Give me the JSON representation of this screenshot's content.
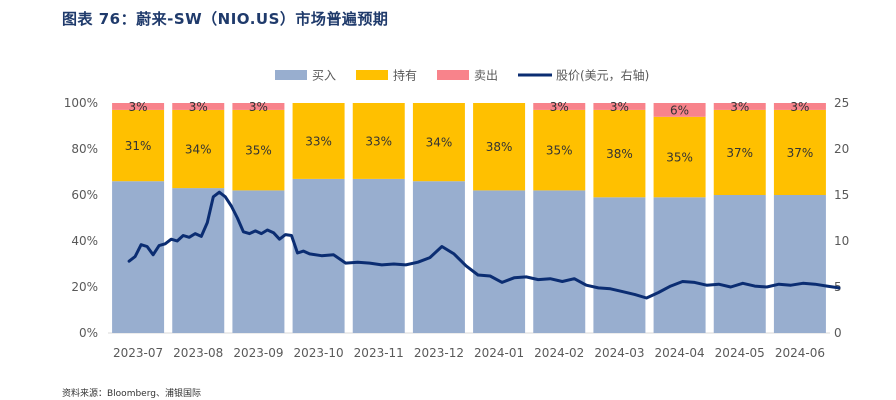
{
  "figure": {
    "title": "图表 76：蔚来-SW（NIO.US）市场普遍预期",
    "source": "资料来源：Bloomberg、浦银国际"
  },
  "colors": {
    "buy": "#98aecf",
    "hold": "#ffc000",
    "sell": "#f8838b",
    "price": "#0b2d72",
    "title": "#1f3a6b"
  },
  "chart_data": {
    "type": "bar",
    "stacked": true,
    "categories": [
      "2023-07",
      "2023-08",
      "2023-09",
      "2023-10",
      "2023-11",
      "2023-12",
      "2024-01",
      "2024-02",
      "2024-03",
      "2024-04",
      "2024-05",
      "2024-06"
    ],
    "series": [
      {
        "name": "买入",
        "key": "buy",
        "values": [
          66,
          63,
          62,
          67,
          67,
          66,
          62,
          62,
          59,
          59,
          60,
          60
        ],
        "labels": [
          "",
          "",
          "",
          "",
          "",
          "",
          "",
          "",
          "",
          "",
          "",
          ""
        ]
      },
      {
        "name": "持有",
        "key": "hold",
        "values": [
          31,
          34,
          35,
          33,
          33,
          34,
          38,
          35,
          38,
          35,
          37,
          37
        ],
        "labels": [
          "31%",
          "34%",
          "35%",
          "33%",
          "33%",
          "34%",
          "38%",
          "35%",
          "38%",
          "35%",
          "37%",
          "37%"
        ]
      },
      {
        "name": "卖出",
        "key": "sell",
        "values": [
          3,
          3,
          3,
          0,
          0,
          0,
          0,
          3,
          3,
          6,
          3,
          3
        ],
        "labels": [
          "3%",
          "3%",
          "3%",
          "",
          "",
          "",
          "",
          "3%",
          "3%",
          "6%",
          "3%",
          "3%"
        ]
      }
    ],
    "line": {
      "name": "股价(美元，右轴)",
      "axis": "right",
      "x": [
        0.0,
        0.1,
        0.2,
        0.3,
        0.4,
        0.5,
        0.6,
        0.7,
        0.8,
        0.9,
        1.0,
        1.1,
        1.2,
        1.3,
        1.4,
        1.5,
        1.6,
        1.7,
        1.8,
        1.9,
        2.0,
        2.1,
        2.2,
        2.3,
        2.4,
        2.5,
        2.6,
        2.7,
        2.8,
        2.9,
        3.0,
        3.2,
        3.4,
        3.6,
        3.8,
        4.0,
        4.2,
        4.4,
        4.6,
        4.8,
        5.0,
        5.2,
        5.4,
        5.6,
        5.8,
        6.0,
        6.2,
        6.4,
        6.6,
        6.8,
        7.0,
        7.2,
        7.4,
        7.6,
        7.8,
        8.0,
        8.2,
        8.4,
        8.6,
        8.8,
        9.0,
        9.2,
        9.4,
        9.6,
        9.8,
        10.0,
        10.2,
        10.4,
        10.6,
        10.8,
        11.0,
        11.2,
        11.4,
        11.6,
        11.8
      ],
      "values": [
        7.8,
        8.3,
        9.6,
        9.4,
        8.5,
        9.5,
        9.7,
        10.2,
        10.0,
        10.6,
        10.4,
        10.8,
        10.5,
        12.0,
        14.8,
        15.3,
        14.8,
        13.8,
        12.5,
        11.0,
        10.8,
        11.1,
        10.8,
        11.2,
        10.9,
        10.2,
        10.7,
        10.6,
        8.7,
        8.9,
        8.6,
        8.4,
        8.5,
        7.6,
        7.7,
        7.6,
        7.4,
        7.5,
        7.4,
        7.7,
        8.2,
        9.4,
        8.6,
        7.3,
        6.3,
        6.2,
        5.5,
        6.0,
        6.1,
        5.8,
        5.9,
        5.6,
        5.9,
        5.2,
        4.9,
        4.8,
        4.5,
        4.2,
        3.8,
        4.4,
        5.1,
        5.6,
        5.5,
        5.2,
        5.3,
        5.0,
        5.4,
        5.1,
        5.0,
        5.3,
        5.2,
        5.4,
        5.3,
        5.1,
        4.9
      ]
    },
    "y_left": {
      "min": 0,
      "max": 100,
      "ticks": [
        "0%",
        "20%",
        "40%",
        "60%",
        "80%",
        "100%"
      ]
    },
    "y_right": {
      "min": 0,
      "max": 25,
      "ticks": [
        "0",
        "5",
        "10",
        "15",
        "20",
        "25"
      ]
    },
    "legend": {
      "position": "top",
      "items": [
        {
          "label": "买入",
          "key": "buy",
          "kind": "box"
        },
        {
          "label": "持有",
          "key": "hold",
          "kind": "box"
        },
        {
          "label": "卖出",
          "key": "sell",
          "kind": "box"
        },
        {
          "label": "股价(美元，右轴)",
          "key": "price",
          "kind": "line"
        }
      ]
    }
  }
}
